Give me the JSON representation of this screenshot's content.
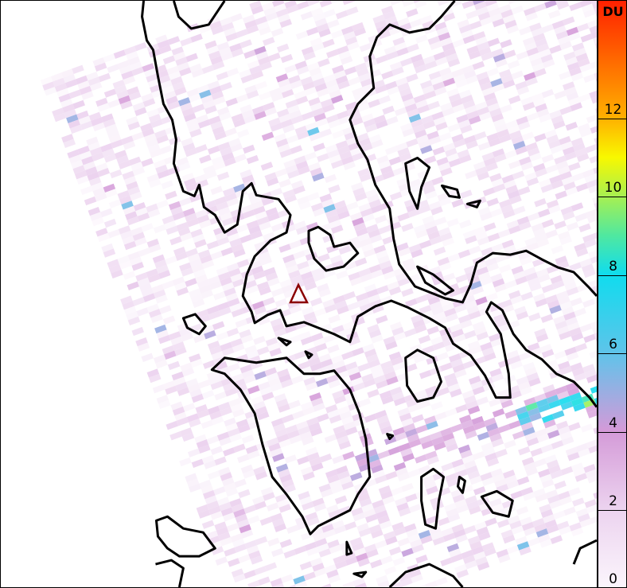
{
  "map": {
    "marker": {
      "icon": "volcano-triangle-icon",
      "color": "#8b0000"
    },
    "coastline_color": "#000000"
  },
  "colorbar": {
    "unit": "DU",
    "range": [
      0,
      15
    ],
    "ticks": [
      "0",
      "2",
      "4",
      "6",
      "8",
      "10",
      "12"
    ],
    "tick_values": [
      0,
      2,
      4,
      6,
      8,
      10,
      12
    ],
    "color_stops": [
      {
        "value": 0,
        "color": "#fbf5fc"
      },
      {
        "value": 2,
        "color": "#ecd3ef"
      },
      {
        "value": 4,
        "color": "#d49ad8"
      },
      {
        "value": 5,
        "color": "#9aaee2"
      },
      {
        "value": 6,
        "color": "#5ec4ea"
      },
      {
        "value": 8,
        "color": "#10dcee"
      },
      {
        "value": 9,
        "color": "#50e8a0"
      },
      {
        "value": 10,
        "color": "#a8f050"
      },
      {
        "value": 11,
        "color": "#f8f800"
      },
      {
        "value": 12,
        "color": "#ffb000"
      },
      {
        "value": 15,
        "color": "#ff2000"
      }
    ]
  }
}
